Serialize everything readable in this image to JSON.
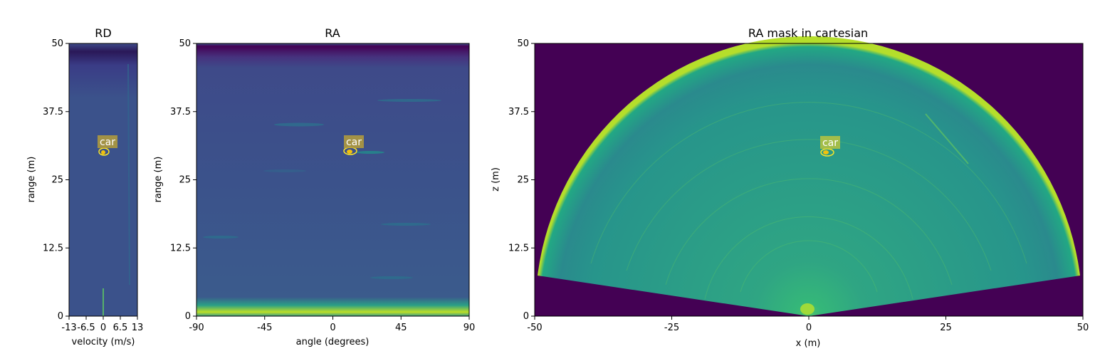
{
  "chart_data": [
    {
      "type": "heatmap",
      "title": "RD",
      "xlabel": "velocity (m/s)",
      "ylabel": "range (m)",
      "xlim": [
        -13,
        13
      ],
      "ylim": [
        0,
        50
      ],
      "x_ticks": [
        "-13",
        "-6.5",
        "0",
        "6.5",
        "13"
      ],
      "y_ticks": [
        "0",
        "12.5",
        "25",
        "37.5",
        "50"
      ],
      "annotations": [
        {
          "label": "car",
          "x": 0,
          "y": 30
        }
      ]
    },
    {
      "type": "heatmap",
      "title": "RA",
      "xlabel": "angle (degrees)",
      "ylabel": "range (m)",
      "xlim": [
        -90,
        90
      ],
      "ylim": [
        0,
        50
      ],
      "x_ticks": [
        "-90",
        "-45",
        "0",
        "45",
        "90"
      ],
      "y_ticks": [
        "0",
        "12.5",
        "25",
        "37.5",
        "50"
      ],
      "annotations": [
        {
          "label": "car",
          "x": 11,
          "y": 30
        }
      ]
    },
    {
      "type": "heatmap",
      "title": "RA mask in cartesian",
      "xlabel": "x (m)",
      "ylabel": "z (m)",
      "xlim": [
        -50,
        50
      ],
      "ylim": [
        0,
        50
      ],
      "x_ticks": [
        "-50",
        "-25",
        "0",
        "25",
        "50"
      ],
      "y_ticks": [
        "0",
        "12.5",
        "25",
        "37.5",
        "50"
      ],
      "annotations": [
        {
          "label": "car",
          "x": 3.2,
          "y": 30
        }
      ]
    }
  ]
}
